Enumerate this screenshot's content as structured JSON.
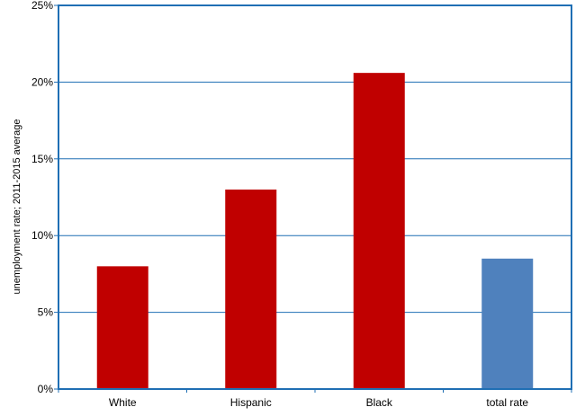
{
  "chart_data": {
    "type": "bar",
    "title": "",
    "xlabel": "",
    "ylabel": "unemployment rate; 2011-2015 average",
    "categories": [
      "White",
      "Hispanic",
      "Black",
      "total rate"
    ],
    "values": [
      8.0,
      13.0,
      20.6,
      8.5
    ],
    "bar_colors": [
      "#c00000",
      "#c00000",
      "#c00000",
      "#4f81bd"
    ],
    "ylim": [
      0,
      25
    ],
    "yticks": [
      0,
      5,
      10,
      15,
      20,
      25
    ],
    "ytick_labels": [
      "0%",
      "5%",
      "10%",
      "15%",
      "20%",
      "25%"
    ],
    "grid": true,
    "legend": "none"
  },
  "colors": {
    "frame": "#1f6fb4",
    "grid": "#1f6fb4",
    "bar_group": "#c00000",
    "bar_total": "#4f81bd"
  }
}
